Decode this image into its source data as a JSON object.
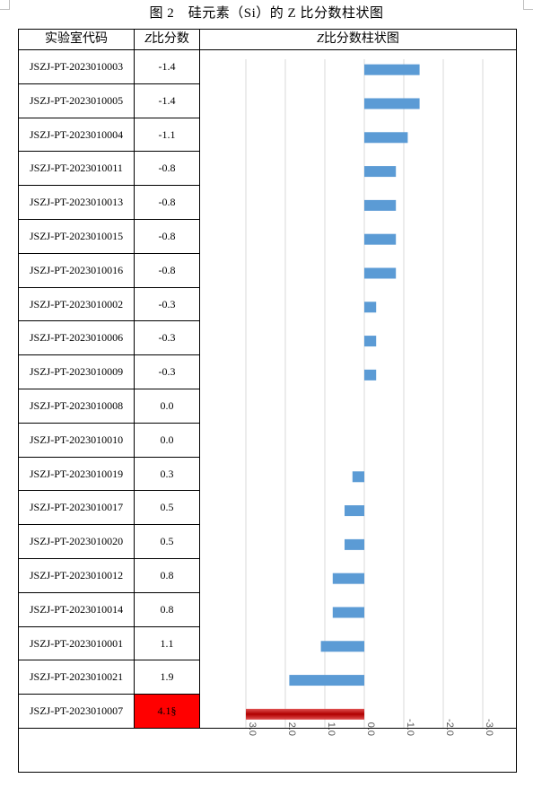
{
  "title": "图 2　硅元素（Si）的 Z 比分数柱状图",
  "table": {
    "col_code_header": "实验室代码",
    "col_z_header_italic": "Z",
    "col_z_header_rest": "比分数",
    "col_chart_header_italic": "Z",
    "col_chart_header_rest": "比分数柱状图",
    "rows": [
      {
        "code": "JSZJ-PT-2023010003",
        "z_label": "-1.4"
      },
      {
        "code": "JSZJ-PT-2023010005",
        "z_label": "-1.4"
      },
      {
        "code": "JSZJ-PT-2023010004",
        "z_label": "-1.1"
      },
      {
        "code": "JSZJ-PT-2023010011",
        "z_label": "-0.8"
      },
      {
        "code": "JSZJ-PT-2023010013",
        "z_label": "-0.8"
      },
      {
        "code": "JSZJ-PT-2023010015",
        "z_label": "-0.8"
      },
      {
        "code": "JSZJ-PT-2023010016",
        "z_label": "-0.8"
      },
      {
        "code": "JSZJ-PT-2023010002",
        "z_label": "-0.3"
      },
      {
        "code": "JSZJ-PT-2023010006",
        "z_label": "-0.3"
      },
      {
        "code": "JSZJ-PT-2023010009",
        "z_label": "-0.3"
      },
      {
        "code": "JSZJ-PT-2023010008",
        "z_label": "0.0"
      },
      {
        "code": "JSZJ-PT-2023010010",
        "z_label": "0.0"
      },
      {
        "code": "JSZJ-PT-2023010019",
        "z_label": "0.3"
      },
      {
        "code": "JSZJ-PT-2023010017",
        "z_label": "0.5"
      },
      {
        "code": "JSZJ-PT-2023010020",
        "z_label": "0.5"
      },
      {
        "code": "JSZJ-PT-2023010012",
        "z_label": "0.8"
      },
      {
        "code": "JSZJ-PT-2023010014",
        "z_label": "0.8"
      },
      {
        "code": "JSZJ-PT-2023010001",
        "z_label": "1.1"
      },
      {
        "code": "JSZJ-PT-2023010021",
        "z_label": "1.9"
      },
      {
        "code": "JSZJ-PT-2023010007",
        "z_label": "4.1§"
      }
    ]
  },
  "chart_data": {
    "type": "bar",
    "orientation": "horizontal",
    "x_reversed": true,
    "xlim": [
      -3.0,
      3.0
    ],
    "x_ticks": [
      "3.0",
      "2.0",
      "1.0",
      "0.0",
      "-1.0",
      "-2.0",
      "-3.0"
    ],
    "grid": true,
    "categories": [
      "JSZJ-PT-2023010003",
      "JSZJ-PT-2023010005",
      "JSZJ-PT-2023010004",
      "JSZJ-PT-2023010011",
      "JSZJ-PT-2023010013",
      "JSZJ-PT-2023010015",
      "JSZJ-PT-2023010016",
      "JSZJ-PT-2023010002",
      "JSZJ-PT-2023010006",
      "JSZJ-PT-2023010009",
      "JSZJ-PT-2023010008",
      "JSZJ-PT-2023010010",
      "JSZJ-PT-2023010019",
      "JSZJ-PT-2023010017",
      "JSZJ-PT-2023010020",
      "JSZJ-PT-2023010012",
      "JSZJ-PT-2023010014",
      "JSZJ-PT-2023010001",
      "JSZJ-PT-2023010021",
      "JSZJ-PT-2023010007"
    ],
    "values": [
      -1.4,
      -1.4,
      -1.1,
      -0.8,
      -0.8,
      -0.8,
      -0.8,
      -0.3,
      -0.3,
      -0.3,
      0.0,
      0.0,
      0.3,
      0.5,
      0.5,
      0.8,
      0.8,
      1.1,
      1.9,
      3.0
    ],
    "bar_color": "#5b9bd5",
    "highlight_index": 19,
    "highlight_color": "#c00000",
    "highlight_cell_color": "#ff0000"
  }
}
